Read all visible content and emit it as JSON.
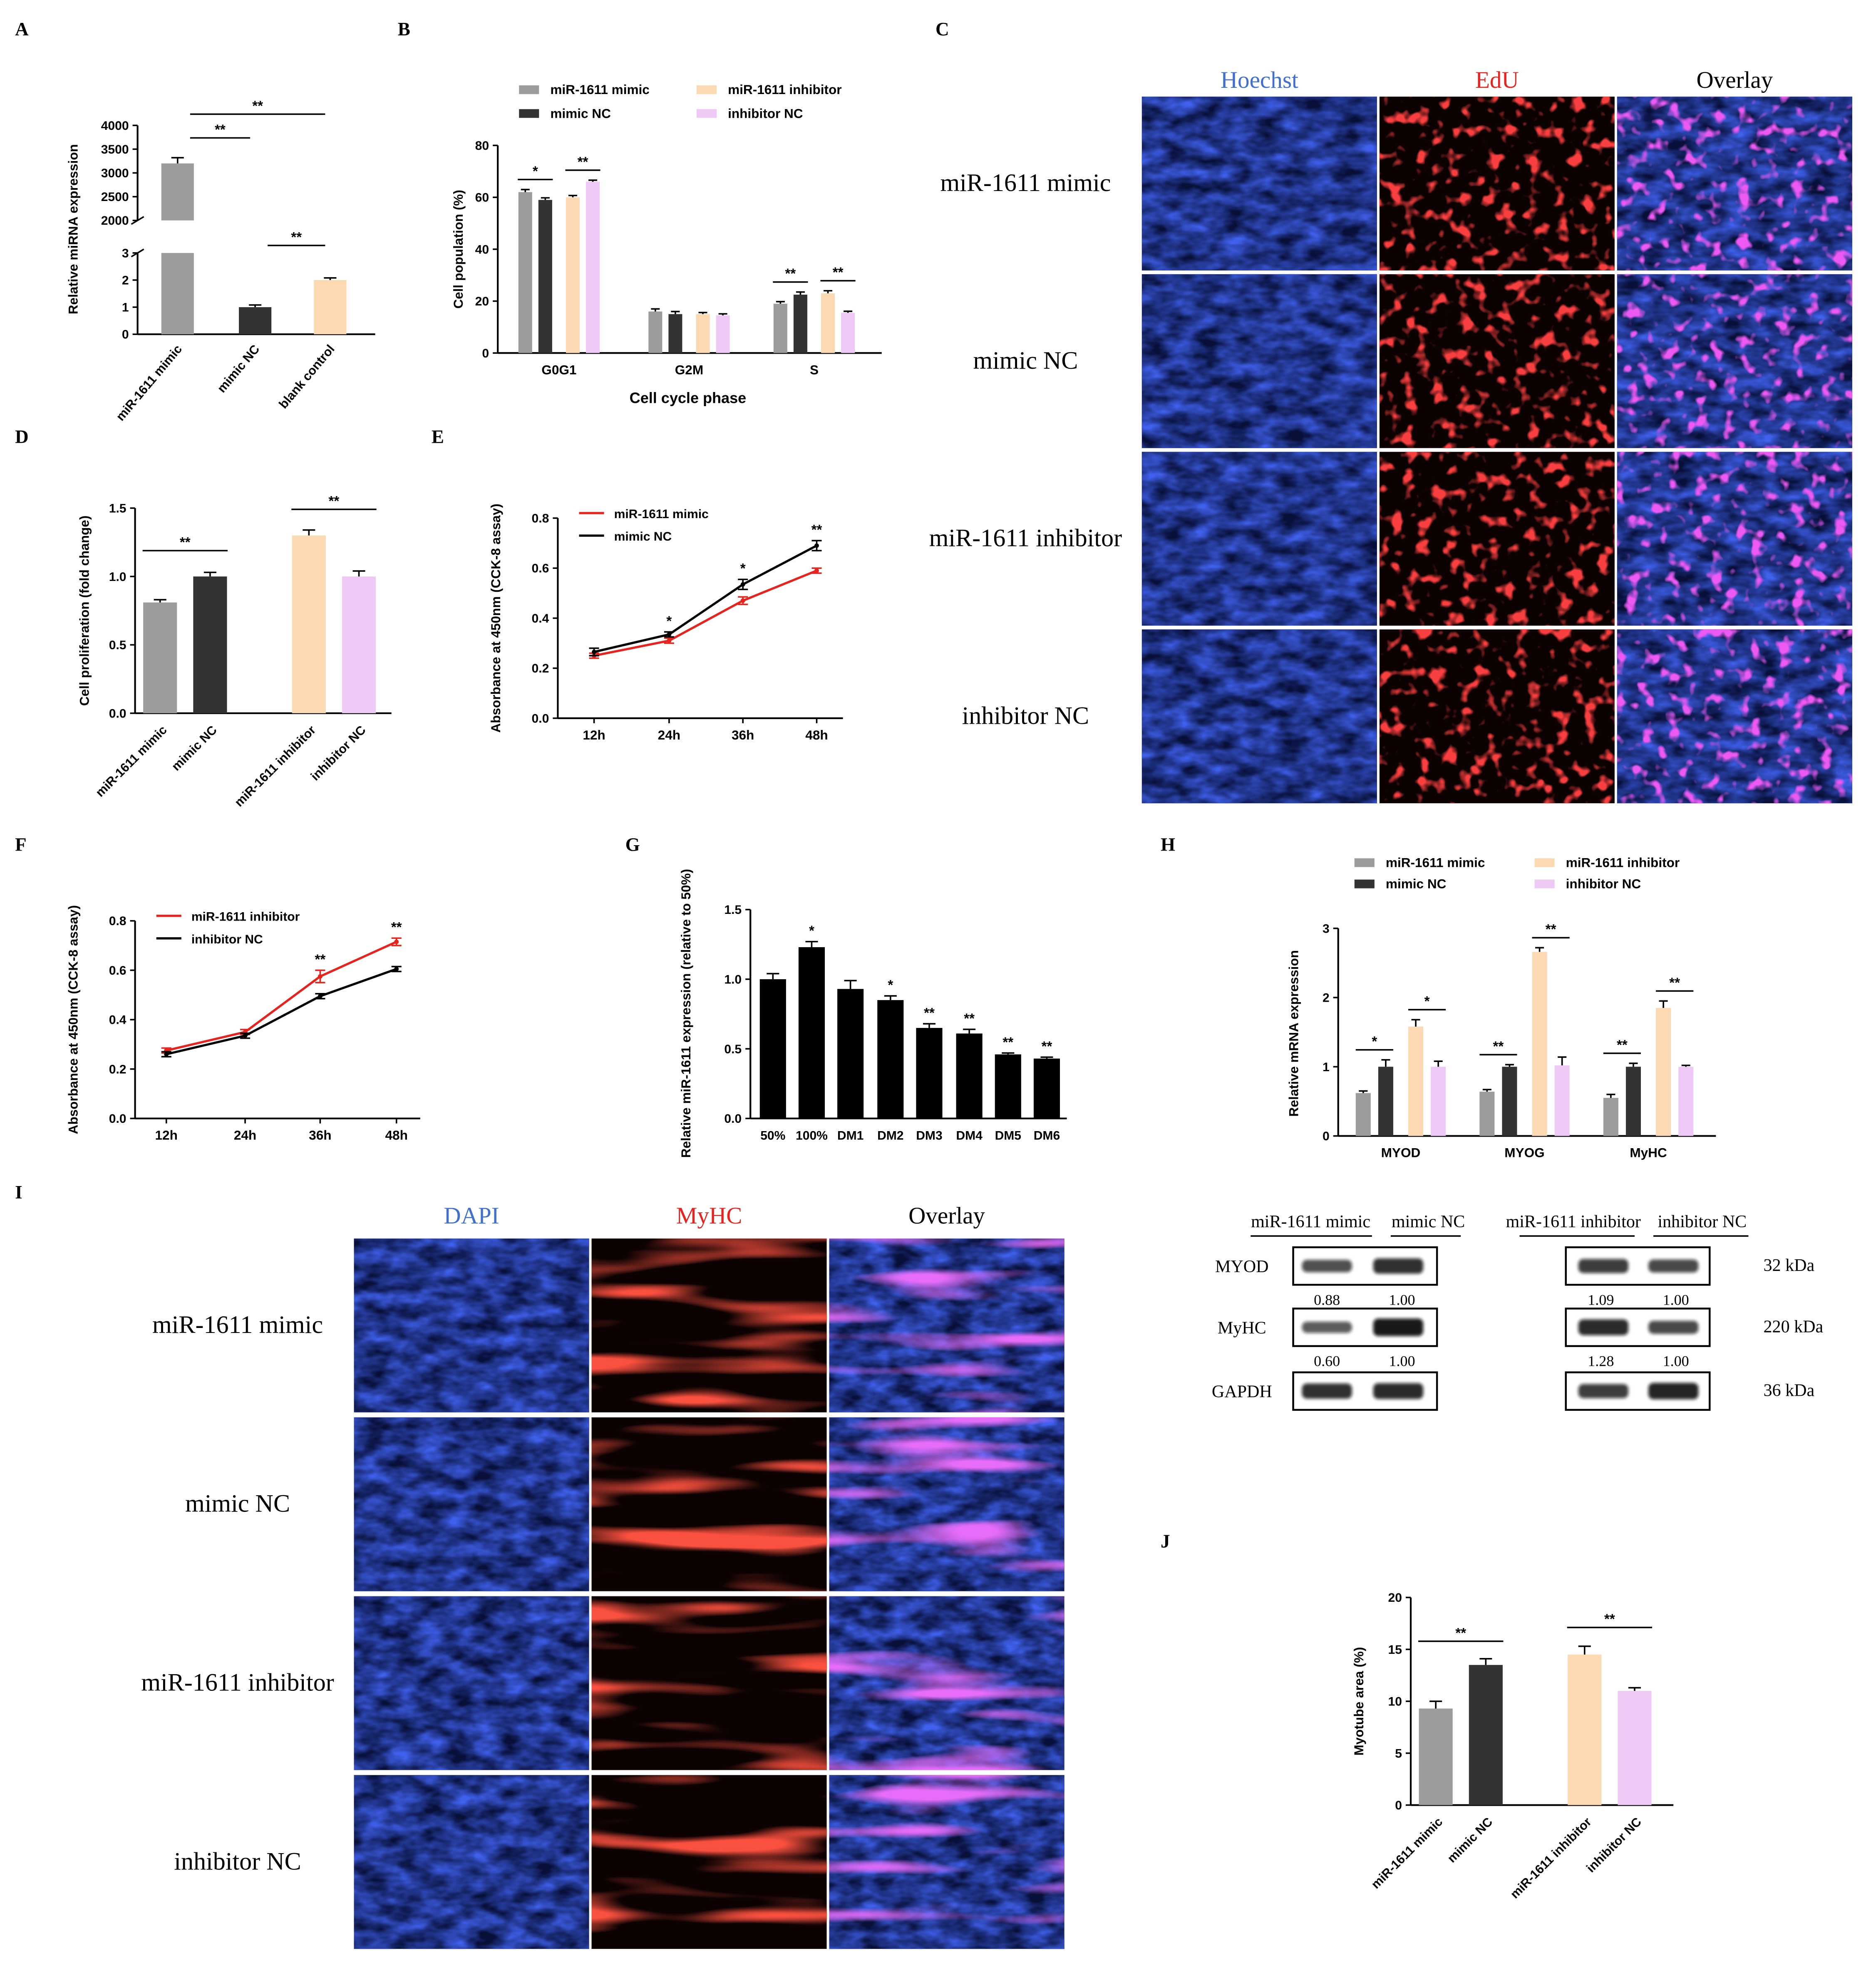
{
  "chart_data": [
    {
      "panel": "A",
      "type": "bar",
      "broken_axis": true,
      "ylabel": "Relative miRNA expression",
      "categories": [
        "miR-1611 mimic",
        "mimic NC",
        "blank control"
      ],
      "values": [
        3200,
        1.0,
        2.0
      ],
      "errors": [
        120,
        0.08,
        0.08
      ],
      "yticks_upper": [
        "2000",
        "2500",
        "3000",
        "3500",
        "4000"
      ],
      "yticks_lower": [
        "0",
        "1",
        "2",
        "3"
      ],
      "upper_range": [
        2000,
        4000
      ],
      "lower_range": [
        0,
        3
      ],
      "colors": [
        "#9c9c9c",
        "#333333",
        "#fcd9b2"
      ],
      "sig": [
        {
          "between": [
            0,
            1
          ],
          "label": "**"
        },
        {
          "between": [
            0,
            2
          ],
          "label": "**"
        },
        {
          "between": [
            1,
            2
          ],
          "label": "**"
        }
      ]
    },
    {
      "panel": "B",
      "type": "bar",
      "title": "",
      "xlabel": "Cell cycle phase",
      "ylabel": "Cell population (%)",
      "categories": [
        "G0G1",
        "G2M",
        "S"
      ],
      "ylim": [
        0,
        80
      ],
      "yticks": [
        "0",
        "20",
        "40",
        "60",
        "80"
      ],
      "series": [
        {
          "name": "miR-1611 mimic",
          "color": "#9c9c9c",
          "values": [
            62,
            16,
            19
          ],
          "errors": [
            1,
            1,
            0.8
          ]
        },
        {
          "name": "mimic NC",
          "color": "#333333",
          "values": [
            59,
            15,
            22.5
          ],
          "errors": [
            0.8,
            1,
            1
          ]
        },
        {
          "name": "miR-1611 inhibitor",
          "color": "#fcd9b2",
          "values": [
            60,
            15,
            23
          ],
          "errors": [
            0.7,
            0.6,
            1
          ]
        },
        {
          "name": "inhibitor NC",
          "color": "#efc9f5",
          "values": [
            66,
            14.5,
            15.5
          ],
          "errors": [
            0.6,
            0.6,
            0.6
          ]
        }
      ],
      "sig": [
        {
          "label": "*",
          "cat": 0,
          "pair": [
            0,
            1
          ]
        },
        {
          "label": "**",
          "cat": 0,
          "pair": [
            2,
            3
          ]
        },
        {
          "label": "**",
          "cat": 2,
          "pair": [
            0,
            1
          ]
        },
        {
          "label": "**",
          "cat": 2,
          "pair": [
            2,
            3
          ]
        }
      ]
    },
    {
      "panel": "D",
      "type": "bar",
      "ylabel": "Cell proliferation (fold change)",
      "categories": [
        "miR-1611 mimic",
        "mimic NC",
        "miR-1611 inhibitor",
        "inhibitor NC"
      ],
      "values": [
        0.81,
        1.0,
        1.3,
        1.0
      ],
      "errors": [
        0.02,
        0.03,
        0.04,
        0.04
      ],
      "ylim": [
        0,
        1.5
      ],
      "yticks": [
        "0.0",
        "0.5",
        "1.0",
        "1.5"
      ],
      "colors": [
        "#9c9c9c",
        "#333333",
        "#fcd9b2",
        "#efc9f5"
      ],
      "sig": [
        {
          "between": [
            0,
            1
          ],
          "label": "**"
        },
        {
          "between": [
            2,
            3
          ],
          "label": "**"
        }
      ]
    },
    {
      "panel": "E",
      "type": "line",
      "ylabel": "Absorbance at 450nm (CCK-8 assay)",
      "x": [
        "12h",
        "24h",
        "36h",
        "48h"
      ],
      "ylim": [
        0,
        0.8
      ],
      "yticks": [
        "0.0",
        "0.2",
        "0.4",
        "0.6",
        "0.8"
      ],
      "series": [
        {
          "name": "miR-1611 mimic",
          "color": "#e8221c",
          "values": [
            0.25,
            0.31,
            0.47,
            0.59
          ],
          "errors": [
            0.01,
            0.01,
            0.015,
            0.01
          ]
        },
        {
          "name": "mimic NC",
          "color": "#000000",
          "values": [
            0.265,
            0.335,
            0.535,
            0.69
          ],
          "errors": [
            0.015,
            0.01,
            0.02,
            0.02
          ]
        }
      ],
      "sig": [
        "",
        "*",
        "*",
        "**"
      ]
    },
    {
      "panel": "F",
      "type": "line",
      "ylabel": "Absorbance at 450nm (CCK-8 assay)",
      "x": [
        "12h",
        "24h",
        "36h",
        "48h"
      ],
      "ylim": [
        0,
        0.8
      ],
      "yticks": [
        "0.0",
        "0.2",
        "0.4",
        "0.6",
        "0.8"
      ],
      "series": [
        {
          "name": "miR-1611 inhibitor",
          "color": "#e8221c",
          "values": [
            0.275,
            0.35,
            0.575,
            0.715
          ],
          "errors": [
            0.01,
            0.01,
            0.025,
            0.015
          ]
        },
        {
          "name": "inhibitor NC",
          "color": "#000000",
          "values": [
            0.26,
            0.335,
            0.495,
            0.605
          ],
          "errors": [
            0.01,
            0.01,
            0.01,
            0.01
          ]
        }
      ],
      "sig": [
        "",
        "",
        "**",
        "**"
      ]
    },
    {
      "panel": "G",
      "type": "bar",
      "ylabel": "Relative miR-1611 expression (relative to 50%)",
      "categories": [
        "50%",
        "100%",
        "DM1",
        "DM2",
        "DM3",
        "DM4",
        "DM5",
        "DM6"
      ],
      "values": [
        1.0,
        1.23,
        0.93,
        0.85,
        0.65,
        0.61,
        0.46,
        0.43
      ],
      "errors": [
        0.04,
        0.04,
        0.06,
        0.03,
        0.03,
        0.03,
        0.01,
        0.01
      ],
      "ylim": [
        0,
        1.5
      ],
      "yticks": [
        "0.0",
        "0.5",
        "1.0",
        "1.5"
      ],
      "colors": [
        "#000000",
        "#000000",
        "#000000",
        "#000000",
        "#000000",
        "#000000",
        "#000000",
        "#000000"
      ],
      "sig_labels": [
        "",
        "*",
        "",
        "*",
        "**",
        "**",
        "**",
        "**"
      ]
    },
    {
      "panel": "H",
      "type": "bar",
      "ylabel": "Relative mRNA expression",
      "categories": [
        "MYOD",
        "MYOG",
        "MyHC"
      ],
      "ylim": [
        0,
        3
      ],
      "yticks": [
        "0",
        "1",
        "2",
        "3"
      ],
      "series": [
        {
          "name": "miR-1611 mimic",
          "color": "#9c9c9c",
          "values": [
            0.62,
            0.64,
            0.55
          ],
          "errors": [
            0.03,
            0.03,
            0.05
          ]
        },
        {
          "name": "mimic NC",
          "color": "#333333",
          "values": [
            1.0,
            1.0,
            1.0
          ],
          "errors": [
            0.1,
            0.03,
            0.05
          ]
        },
        {
          "name": "miR-1611 inhibitor",
          "color": "#fcd9b2",
          "values": [
            1.58,
            2.66,
            1.85
          ],
          "errors": [
            0.1,
            0.06,
            0.1
          ]
        },
        {
          "name": "inhibitor NC",
          "color": "#efc9f5",
          "values": [
            1.0,
            1.02,
            1.0
          ],
          "errors": [
            0.08,
            0.12,
            0.02
          ]
        }
      ],
      "sig": [
        {
          "label": "*",
          "cat": 0,
          "pair": [
            0,
            1
          ]
        },
        {
          "label": "*",
          "cat": 0,
          "pair": [
            2,
            3
          ]
        },
        {
          "label": "**",
          "cat": 1,
          "pair": [
            0,
            1
          ]
        },
        {
          "label": "**",
          "cat": 1,
          "pair": [
            2,
            3
          ]
        },
        {
          "label": "**",
          "cat": 2,
          "pair": [
            0,
            1
          ]
        },
        {
          "label": "**",
          "cat": 2,
          "pair": [
            2,
            3
          ]
        }
      ]
    },
    {
      "panel": "J",
      "type": "bar",
      "ylabel": "Myotube area (%)",
      "categories": [
        "miR-1611 mimic",
        "mimic NC",
        "miR-1611 inhibitor",
        "inhibitor NC"
      ],
      "values": [
        9.3,
        13.5,
        14.5,
        11.0
      ],
      "errors": [
        0.7,
        0.6,
        0.8,
        0.3
      ],
      "ylim": [
        0,
        20
      ],
      "yticks": [
        "0",
        "5",
        "10",
        "15",
        "20"
      ],
      "colors": [
        "#9c9c9c",
        "#333333",
        "#fcd9b2",
        "#efc9f5"
      ],
      "sig": [
        {
          "between": [
            0,
            1
          ],
          "label": "**"
        },
        {
          "between": [
            2,
            3
          ],
          "label": "**"
        }
      ]
    }
  ],
  "panel_letters": [
    "A",
    "B",
    "C",
    "D",
    "E",
    "F",
    "G",
    "H",
    "I",
    "J"
  ],
  "panel_c": {
    "columns": [
      "Hoechst",
      "EdU",
      "Overlay"
    ],
    "column_colors": [
      "#3f6fd0",
      "#e8221c",
      "#000000"
    ],
    "rows": [
      "miR-1611 mimic",
      "mimic NC",
      "miR-1611 inhibitor",
      "inhibitor NC"
    ]
  },
  "panel_i": {
    "columns": [
      "DAPI",
      "MyHC",
      "Overlay"
    ],
    "column_colors": [
      "#3f6fd0",
      "#e8221c",
      "#000000"
    ],
    "rows": [
      "miR-1611 mimic",
      "mimic NC",
      "miR-1611 inhibitor",
      "inhibitor NC"
    ]
  },
  "western": {
    "groups_left": [
      "miR-1611 mimic",
      "mimic NC"
    ],
    "groups_right": [
      "miR-1611 inhibitor",
      "inhibitor NC"
    ],
    "bands": [
      {
        "name": "MYOD",
        "kda": "32 kDa",
        "left": [
          "0.88",
          "1.00"
        ],
        "right": [
          "1.09",
          "1.00"
        ]
      },
      {
        "name": "MyHC",
        "kda": "220 kDa",
        "left": [
          "0.60",
          "1.00"
        ],
        "right": [
          "1.28",
          "1.00"
        ]
      },
      {
        "name": "GAPDH",
        "kda": "36 kDa",
        "left": [
          "",
          ""
        ],
        "right": [
          "",
          ""
        ]
      }
    ]
  }
}
